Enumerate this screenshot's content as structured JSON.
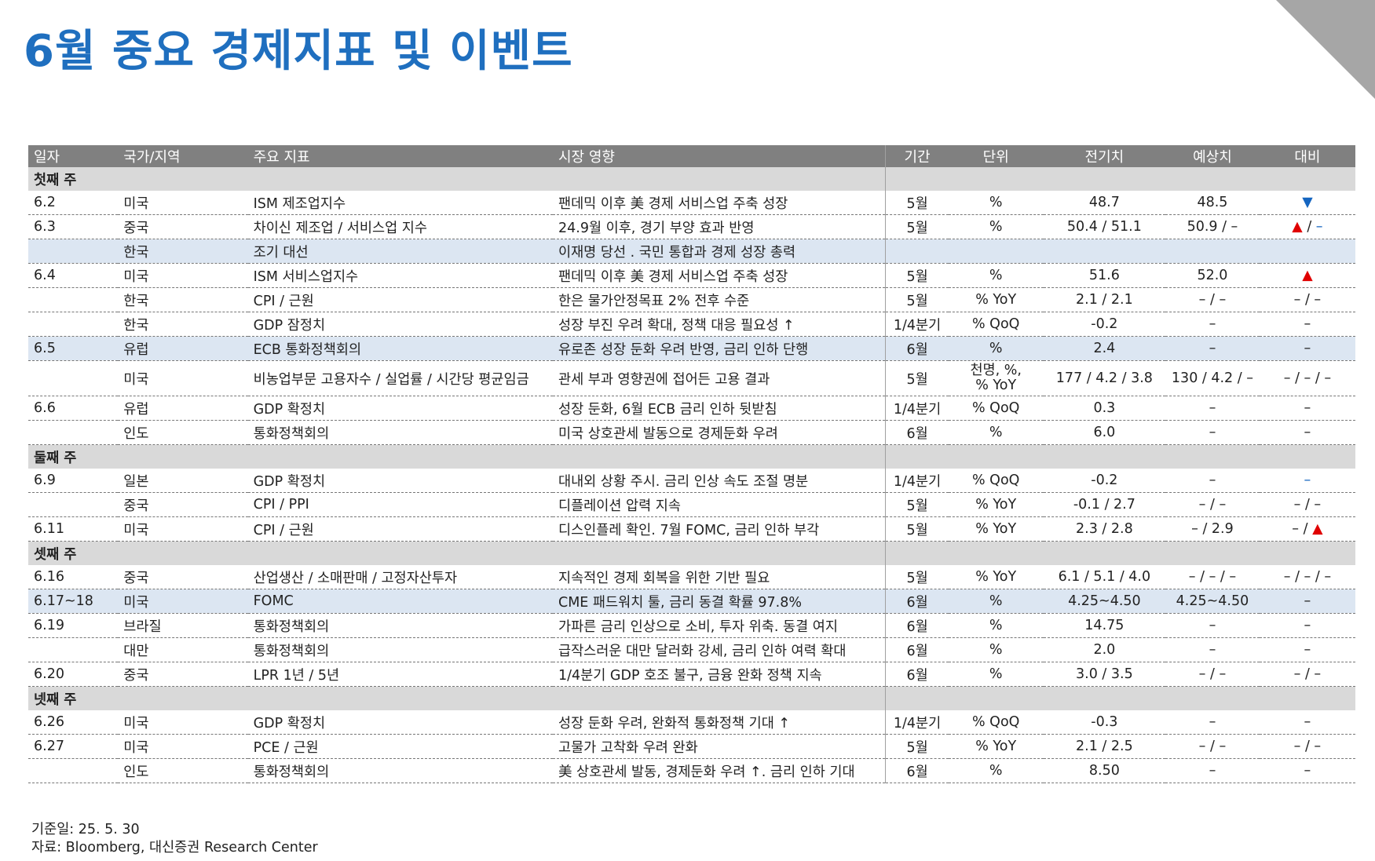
{
  "title": "6월 중요 경제지표 및 이벤트",
  "headers": {
    "date": "일자",
    "region": "국가/지역",
    "indicator": "주요 지표",
    "impact": "시장 영향",
    "period": "기간",
    "unit": "단위",
    "prev": "전기치",
    "forecast": "예상치",
    "compare": "대비"
  },
  "weeks": [
    "첫째 주",
    "둘째 주",
    "셋째 주",
    "넷째 주"
  ],
  "rows": [
    {
      "date": "6.2",
      "region": "미국",
      "indicator": "ISM 제조업지수",
      "impact": "팬데믹 이후  美 경제 서비스업 주축 성장",
      "period": "5월",
      "unit": "%",
      "prev": "48.7",
      "forecast": "48.5",
      "compare": "▼"
    },
    {
      "date": "6.3",
      "region": "중국",
      "indicator": "차이신 제조업 / 서비스업 지수",
      "impact": "24.9월 이후, 경기 부양 효과 반영",
      "period": "5월",
      "unit": "%",
      "prev": "50.4 / 51.1",
      "forecast": "50.9 / –",
      "compare_up": "▲",
      "compare_sep": " / ",
      "compare_dash": "–"
    },
    {
      "date": "",
      "region": "한국",
      "indicator": "조기 대선",
      "impact": "이재명 당선 . 국민 통합과 경제 성장 총력",
      "period": "",
      "unit": "",
      "prev": "",
      "forecast": "",
      "compare": ""
    },
    {
      "date": "6.4",
      "region": "미국",
      "indicator": "ISM 서비스업지수",
      "impact": "팬데믹 이후  美 경제 서비스업 주축 성장",
      "period": "5월",
      "unit": "%",
      "prev": "51.6",
      "forecast": "52.0",
      "compare": "▲"
    },
    {
      "date": "",
      "region": "한국",
      "indicator": "CPI / 근원",
      "impact": "한은 물가안정목표 2% 전후 수준",
      "period": "5월",
      "unit": "% YoY",
      "prev": "2.1 / 2.1",
      "forecast": "– / –",
      "compare": "– / –"
    },
    {
      "date": "",
      "region": "한국",
      "indicator": "GDP 잠정치",
      "impact": "성장 부진 우려 확대, 정책 대응 필요성 ↑",
      "period": "1/4분기",
      "unit": "% QoQ",
      "prev": "-0.2",
      "forecast": "–",
      "compare": "–"
    },
    {
      "date": "6.5",
      "region": "유럽",
      "indicator": "ECB 통화정책회의",
      "impact": "유로존 성장 둔화 우려 반영, 금리 인하 단행",
      "period": "6월",
      "unit": "%",
      "prev": "2.4",
      "forecast": "–",
      "compare": "–"
    },
    {
      "date": "",
      "region": "미국",
      "indicator": "비농업부문 고용자수 / 실업률 / 시간당 평균임금",
      "impact": "관세 부과 영향권에 접어든 고용 결과",
      "period": "5월",
      "unit": "천명, %, % YoY",
      "prev": "177 / 4.2 / 3.8",
      "forecast": "130 / 4.2 / –",
      "compare": "– / – / –"
    },
    {
      "date": "6.6",
      "region": "유럽",
      "indicator": "GDP 확정치",
      "impact": "성장 둔화, 6월 ECB 금리 인하 뒷받침",
      "period": "1/4분기",
      "unit": "% QoQ",
      "prev": "0.3",
      "forecast": "–",
      "compare": "–"
    },
    {
      "date": "",
      "region": "인도",
      "indicator": "통화정책회의",
      "impact": "미국 상호관세 발동으로 경제둔화 우려",
      "period": "6월",
      "unit": "%",
      "prev": "6.0",
      "forecast": "–",
      "compare": "–"
    },
    {
      "date": "6.9",
      "region": "일본",
      "indicator": "GDP 확정치",
      "impact": "대내외 상황 주시.  금리 인상 속도 조절 명분",
      "period": "1/4분기",
      "unit": "% QoQ",
      "prev": "-0.2",
      "forecast": "–",
      "compare": "–"
    },
    {
      "date": "",
      "region": "중국",
      "indicator": "CPI / PPI",
      "impact": "디플레이션 압력 지속",
      "period": "5월",
      "unit": "% YoY",
      "prev": "-0.1 / 2.7",
      "forecast": "– / –",
      "compare": "– / –"
    },
    {
      "date": "6.11",
      "region": "미국",
      "indicator": "CPI / 근원",
      "impact": "디스인플레 확인. 7월 FOMC, 금리 인하 부각",
      "period": "5월",
      "unit": "% YoY",
      "prev": "2.3 / 2.8",
      "forecast": "– / 2.9",
      "compare_dash": "–",
      "compare_sep": " / ",
      "compare_up": "▲"
    },
    {
      "date": "6.16",
      "region": "중국",
      "indicator": "산업생산 / 소매판매 / 고정자산투자",
      "impact": "지속적인 경제 회복을 위한 기반 필요",
      "period": "5월",
      "unit": "% YoY",
      "prev": "6.1 / 5.1 / 4.0",
      "forecast": "– / – / –",
      "compare": "– / – / –"
    },
    {
      "date": "6.17~18",
      "region": "미국",
      "indicator": "FOMC",
      "impact": "CME 패드워치 툴, 금리 동결 확률 97.8%",
      "period": "6월",
      "unit": "%",
      "prev": "4.25~4.50",
      "forecast": "4.25~4.50",
      "compare": "–"
    },
    {
      "date": "6.19",
      "region": "브라질",
      "indicator": "통화정책회의",
      "impact": "가파른 금리 인상으로 소비, 투자 위축. 동결 여지",
      "period": "6월",
      "unit": "%",
      "prev": "14.75",
      "forecast": "–",
      "compare": "–"
    },
    {
      "date": "",
      "region": "대만",
      "indicator": "통화정책회의",
      "impact": "급작스러운 대만 달러화 강세, 금리 인하 여력 확대",
      "period": "6월",
      "unit": "%",
      "prev": "2.0",
      "forecast": "–",
      "compare": "–"
    },
    {
      "date": "6.20",
      "region": "중국",
      "indicator": "LPR 1년 / 5년",
      "impact": "1/4분기 GDP 호조 불구, 금융 완화 정책 지속",
      "period": "6월",
      "unit": "%",
      "prev": "3.0 / 3.5",
      "forecast": "– / –",
      "compare": "– / –"
    },
    {
      "date": "6.26",
      "region": "미국",
      "indicator": "GDP 확정치",
      "impact": "성장 둔화 우려, 완화적 통화정책 기대  ↑",
      "period": "1/4분기",
      "unit": "% QoQ",
      "prev": "-0.3",
      "forecast": "–",
      "compare": "–"
    },
    {
      "date": "6.27",
      "region": "미국",
      "indicator": "PCE / 근원",
      "impact": "고물가 고착화 우려 완화",
      "period": "5월",
      "unit": "% YoY",
      "prev": "2.1 / 2.5",
      "forecast": "– / –",
      "compare": "– / –"
    },
    {
      "date": "",
      "region": "인도",
      "indicator": "통화정책회의",
      "impact": "美 상호관세 발동,  경제둔화 우려 ↑. 금리 인하 기대",
      "period": "6월",
      "unit": "%",
      "prev": "8.50",
      "forecast": "–",
      "compare": "–"
    }
  ],
  "unit_tall_lines": [
    "천명, %,",
    "% YoY"
  ],
  "footnote": {
    "base_date": "기준일: 25. 5. 30",
    "source": "자료: Bloomberg, 대신증권 Research Center"
  },
  "colors": {
    "title": "#1f6fbf",
    "header_bg": "#808080",
    "week_bg": "#d9d9d9",
    "highlight_bg": "#dce6f2",
    "up": "#e00000",
    "down": "#1565c0"
  }
}
